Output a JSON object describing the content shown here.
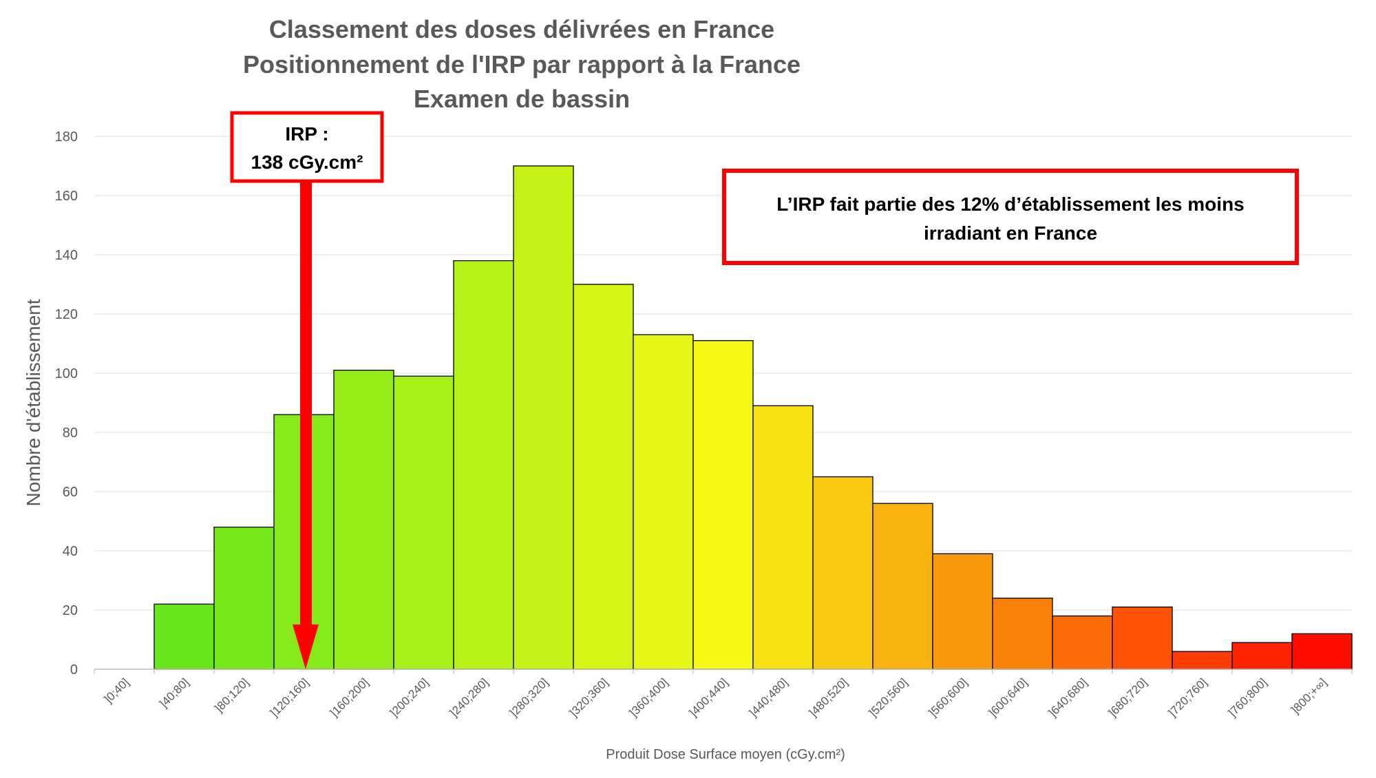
{
  "chart_data": {
    "type": "bar",
    "title_lines": [
      "Classement des doses délivrées en France",
      "Positionnement de l'IRP par rapport à la France",
      "Examen de bassin"
    ],
    "xlabel": "Produit Dose Surface moyen (cGy.cm²)",
    "ylabel": "Nombre d'établissement",
    "ylim": [
      0,
      180
    ],
    "yticks": [
      0,
      20,
      40,
      60,
      80,
      100,
      120,
      140,
      160,
      180
    ],
    "grid": true,
    "categories": [
      "]0;40]",
      "]40;80]",
      "]80;120]",
      "]120;160]",
      "]160;200]",
      "]200;240]",
      "]240;280]",
      "]280;320]",
      "]320;360]",
      "]360;400]",
      "]400;440]",
      "]440;480]",
      "]480;520]",
      "]520;560]",
      "]560;600]",
      "]600;640]",
      "]640;680]",
      "]680;720]",
      "]720;760]",
      "]760;800]",
      "]800;+∞]"
    ],
    "values": [
      0,
      22,
      48,
      86,
      101,
      99,
      138,
      170,
      130,
      113,
      111,
      89,
      65,
      56,
      39,
      24,
      18,
      21,
      6,
      9,
      12
    ],
    "bar_gradient": [
      "#4fe31c",
      "#f5f915",
      "#ff0000"
    ],
    "irp_marker": {
      "value": 138,
      "label_line1": "IRP :",
      "label_line2": "138 cGy.cm²",
      "color": "#ff0000"
    },
    "annotation": {
      "line1": "L’IRP fait partie des 12% d’établissement les moins",
      "line2": "irradiant en France",
      "border_color": "#ff0000"
    }
  }
}
